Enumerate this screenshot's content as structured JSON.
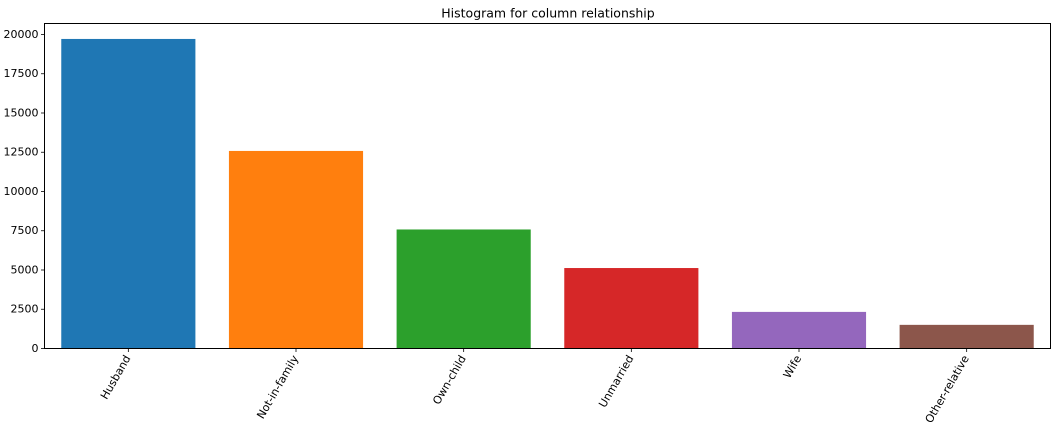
{
  "chart_data": {
    "type": "bar",
    "title": "Histogram for column relationship",
    "xlabel": "",
    "ylabel": "",
    "categories": [
      "Husband",
      "Not-in-family",
      "Own-child",
      "Unmarried",
      "Wife",
      "Other-relative"
    ],
    "values": [
      19716,
      12583,
      7581,
      5125,
      2331,
      1506
    ],
    "colors": [
      "#1f77b4",
      "#ff7f0e",
      "#2ca02c",
      "#d62728",
      "#9467bd",
      "#8c564b"
    ],
    "ylim": [
      0,
      20700
    ],
    "yticks": [
      0,
      2500,
      5000,
      7500,
      10000,
      12500,
      15000,
      17500,
      20000
    ],
    "xtick_rotation_deg": 60,
    "grid": false,
    "legend": "none"
  }
}
